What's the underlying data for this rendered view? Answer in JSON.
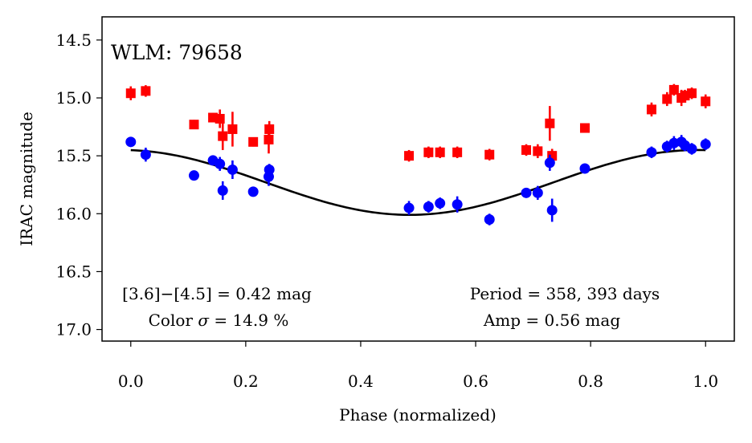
{
  "chart_data": {
    "type": "scatter",
    "title": "WLM: 79658",
    "xlabel": "Phase (normalized)",
    "ylabel": "IRAC magnitude",
    "xlim": [
      -0.05,
      1.05
    ],
    "ylim": [
      17.1,
      14.3
    ],
    "y_inverted": true,
    "xticks": [
      0.0,
      0.2,
      0.4,
      0.6,
      0.8,
      1.0
    ],
    "xtick_labels": [
      "0.0",
      "0.2",
      "0.4",
      "0.6",
      "0.8",
      "1.0"
    ],
    "yticks": [
      14.5,
      15.0,
      15.5,
      16.0,
      16.5,
      17.0
    ],
    "ytick_labels": [
      "14.5",
      "15.0",
      "15.5",
      "16.0",
      "16.5",
      "17.0"
    ],
    "grid": false,
    "annotations": {
      "color_line1": "[3.6]−[4.5] = 0.42 mag",
      "color_line2_prefix": "Color ",
      "color_line2_sigma": "σ",
      "color_line2_suffix": " = 14.9 %",
      "period": "Period = 358, 393 days",
      "amp": "Amp = 0.56 mag"
    },
    "model": {
      "name": "sinusoid fit",
      "mean": 15.73,
      "amplitude": 0.28,
      "phase_of_max_brightness": 0.985,
      "color": "#000000"
    },
    "series": [
      {
        "name": "[4.5]",
        "marker": "square",
        "color": "#ff0000",
        "points": [
          {
            "x": 0.0,
            "y": 14.96,
            "err": 0.06
          },
          {
            "x": 0.026,
            "y": 14.94,
            "err": 0.05
          },
          {
            "x": 0.11,
            "y": 15.23,
            "err": 0.04
          },
          {
            "x": 0.143,
            "y": 15.17,
            "err": 0.04
          },
          {
            "x": 0.155,
            "y": 15.18,
            "err": 0.08
          },
          {
            "x": 0.16,
            "y": 15.33,
            "err": 0.12
          },
          {
            "x": 0.177,
            "y": 15.27,
            "err": 0.15
          },
          {
            "x": 0.213,
            "y": 15.38,
            "err": 0.04
          },
          {
            "x": 0.24,
            "y": 15.36,
            "err": 0.12
          },
          {
            "x": 0.241,
            "y": 15.27,
            "err": 0.07
          },
          {
            "x": 0.484,
            "y": 15.5,
            "err": 0.05
          },
          {
            "x": 0.518,
            "y": 15.47,
            "err": 0.05
          },
          {
            "x": 0.538,
            "y": 15.47,
            "err": 0.05
          },
          {
            "x": 0.568,
            "y": 15.47,
            "err": 0.05
          },
          {
            "x": 0.624,
            "y": 15.49,
            "err": 0.05
          },
          {
            "x": 0.688,
            "y": 15.45,
            "err": 0.05
          },
          {
            "x": 0.708,
            "y": 15.46,
            "err": 0.06
          },
          {
            "x": 0.729,
            "y": 15.22,
            "err": 0.15
          },
          {
            "x": 0.733,
            "y": 15.5,
            "err": 0.06
          },
          {
            "x": 0.79,
            "y": 15.26,
            "err": 0.04
          },
          {
            "x": 0.906,
            "y": 15.1,
            "err": 0.06
          },
          {
            "x": 0.933,
            "y": 15.01,
            "err": 0.06
          },
          {
            "x": 0.945,
            "y": 14.93,
            "err": 0.05
          },
          {
            "x": 0.958,
            "y": 15.0,
            "err": 0.07
          },
          {
            "x": 0.964,
            "y": 14.98,
            "err": 0.05
          },
          {
            "x": 0.976,
            "y": 14.96,
            "err": 0.05
          },
          {
            "x": 1.0,
            "y": 15.03,
            "err": 0.06
          }
        ]
      },
      {
        "name": "[3.6]",
        "marker": "circle",
        "color": "#0000ff",
        "points": [
          {
            "x": 0.0,
            "y": 15.38,
            "err": 0.04
          },
          {
            "x": 0.026,
            "y": 15.49,
            "err": 0.06
          },
          {
            "x": 0.11,
            "y": 15.67,
            "err": 0.04
          },
          {
            "x": 0.143,
            "y": 15.54,
            "err": 0.04
          },
          {
            "x": 0.155,
            "y": 15.57,
            "err": 0.06
          },
          {
            "x": 0.16,
            "y": 15.8,
            "err": 0.08
          },
          {
            "x": 0.177,
            "y": 15.62,
            "err": 0.08
          },
          {
            "x": 0.213,
            "y": 15.81,
            "err": 0.04
          },
          {
            "x": 0.24,
            "y": 15.68,
            "err": 0.08
          },
          {
            "x": 0.241,
            "y": 15.62,
            "err": 0.05
          },
          {
            "x": 0.484,
            "y": 15.95,
            "err": 0.06
          },
          {
            "x": 0.518,
            "y": 15.94,
            "err": 0.05
          },
          {
            "x": 0.538,
            "y": 15.91,
            "err": 0.05
          },
          {
            "x": 0.568,
            "y": 15.92,
            "err": 0.07
          },
          {
            "x": 0.624,
            "y": 16.05,
            "err": 0.05
          },
          {
            "x": 0.688,
            "y": 15.82,
            "err": 0.04
          },
          {
            "x": 0.708,
            "y": 15.82,
            "err": 0.06
          },
          {
            "x": 0.729,
            "y": 15.56,
            "err": 0.07
          },
          {
            "x": 0.733,
            "y": 15.97,
            "err": 0.1
          },
          {
            "x": 0.79,
            "y": 15.61,
            "err": 0.04
          },
          {
            "x": 0.906,
            "y": 15.47,
            "err": 0.05
          },
          {
            "x": 0.933,
            "y": 15.42,
            "err": 0.05
          },
          {
            "x": 0.945,
            "y": 15.39,
            "err": 0.06
          },
          {
            "x": 0.958,
            "y": 15.38,
            "err": 0.06
          },
          {
            "x": 0.964,
            "y": 15.41,
            "err": 0.05
          },
          {
            "x": 0.976,
            "y": 15.44,
            "err": 0.05
          },
          {
            "x": 1.0,
            "y": 15.4,
            "err": 0.05
          }
        ]
      }
    ]
  }
}
